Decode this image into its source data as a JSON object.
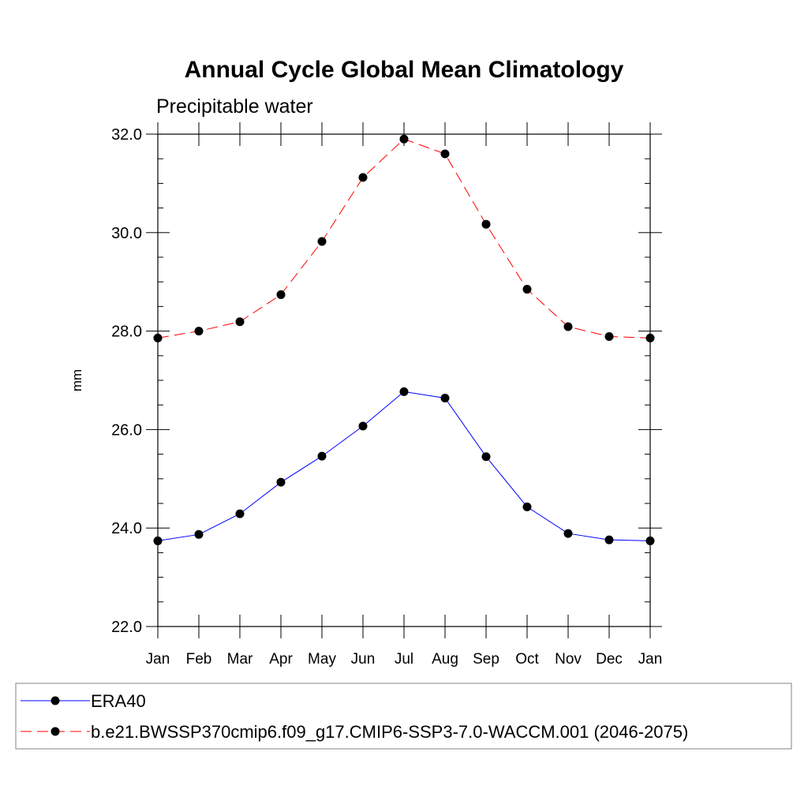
{
  "chart_data": {
    "type": "line",
    "title": "Annual Cycle Global Mean Climatology",
    "subtitle": "Precipitable water",
    "xlabel": "",
    "ylabel": "mm",
    "categories": [
      "Jan",
      "Feb",
      "Mar",
      "Apr",
      "May",
      "Jun",
      "Jul",
      "Aug",
      "Sep",
      "Oct",
      "Nov",
      "Dec",
      "Jan"
    ],
    "ylim": [
      22.0,
      32.0
    ],
    "yticks": [
      "22.0",
      "24.0",
      "26.0",
      "28.0",
      "30.0",
      "32.0"
    ],
    "yticks_values": [
      22,
      24,
      26,
      28,
      30,
      32
    ],
    "grid": false,
    "legend_position": "bottom",
    "series": [
      {
        "name": "ERA40",
        "color": "#0000ff",
        "dash": "solid",
        "values": [
          23.74,
          23.87,
          24.29,
          24.93,
          25.46,
          26.07,
          26.77,
          26.64,
          25.45,
          24.43,
          23.89,
          23.76,
          23.74
        ]
      },
      {
        "name": "b.e21.BWSSP370cmip6.f09_g17.CMIP6-SSP3-7.0-WACCM.001 (2046-2075)",
        "color": "#ff0000",
        "dash": "dashed",
        "values": [
          27.86,
          28.0,
          28.19,
          28.74,
          29.82,
          31.12,
          31.9,
          31.6,
          30.17,
          28.85,
          28.09,
          27.89,
          27.86
        ]
      }
    ]
  }
}
